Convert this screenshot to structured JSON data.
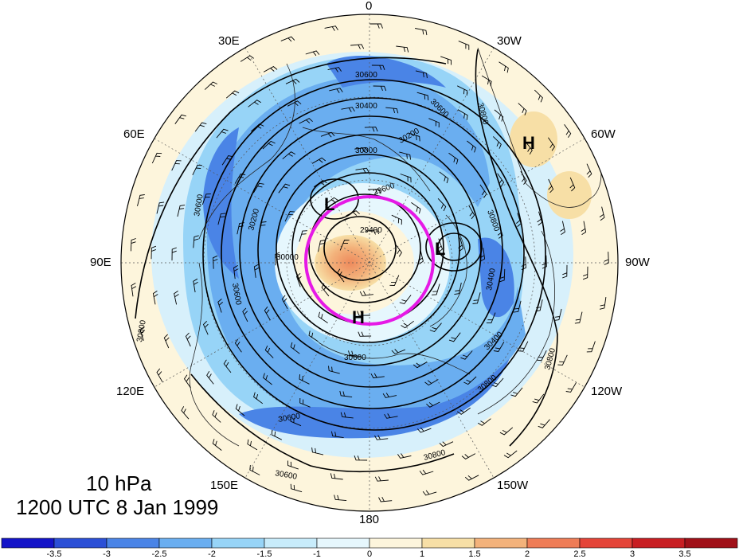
{
  "map": {
    "level_label": "10 hPa",
    "time_label": "1200 UTC 8 Jan 1999",
    "longitude_labels": {
      "top": "0",
      "upper_left": "30E",
      "upper_right": "30W",
      "left_upper": "60E",
      "right_upper": "60W",
      "left": "90E",
      "right": "90W",
      "left_lower": "120E",
      "right_lower": "120W",
      "lower_left": "150E",
      "lower_right": "150W",
      "bottom": "180"
    },
    "contour_labels": [
      "30600",
      "30400",
      "30600",
      "30800",
      "30200",
      "30000",
      "29600",
      "30200",
      "30600",
      "30000",
      "29400",
      "30800",
      "30600",
      "30800",
      "30400",
      "30600",
      "30800",
      "30600",
      "30800",
      "30400",
      "30600",
      "30800",
      "30600",
      "30800"
    ],
    "pressure_centers": [
      {
        "type": "H",
        "label": "H"
      },
      {
        "type": "L",
        "label": "L"
      },
      {
        "type": "L",
        "label": "L"
      },
      {
        "type": "H",
        "label": "H"
      }
    ],
    "highlight_circle_color": "#e619e6"
  },
  "colorbar": {
    "tick_labels": [
      "-3.5",
      "-3",
      "-2.5",
      "-2",
      "-1.5",
      "-1",
      "0",
      "1",
      "1.5",
      "2",
      "2.5",
      "3",
      "3.5"
    ],
    "colors": [
      "#1414c8",
      "#2b4fd6",
      "#4a84e6",
      "#6aaef0",
      "#97d4f7",
      "#c8ecfb",
      "#e6f7fd",
      "#fdf5dc",
      "#f7dfa6",
      "#f3b27b",
      "#ee7c56",
      "#e44438",
      "#c81e22",
      "#a01018"
    ]
  }
}
